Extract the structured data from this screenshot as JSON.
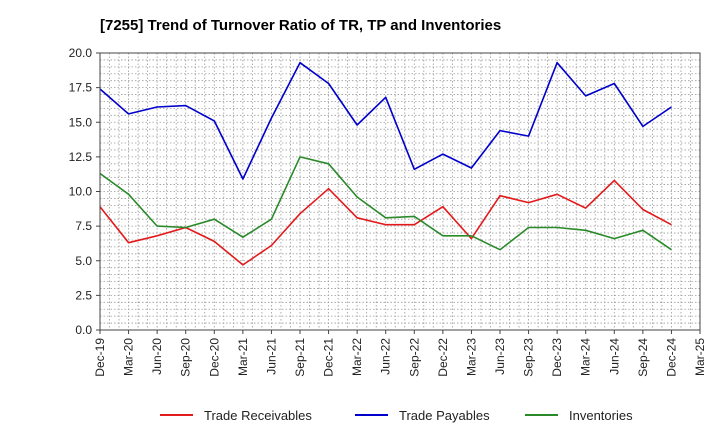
{
  "chart_data": {
    "type": "line",
    "title": "[7255]  Trend of Turnover Ratio of TR, TP and Inventories",
    "xlabel": "",
    "ylabel": "",
    "ylim": [
      0,
      20
    ],
    "yticks": [
      "0.0",
      "2.5",
      "5.0",
      "7.5",
      "10.0",
      "12.5",
      "15.0",
      "17.5",
      "20.0"
    ],
    "x": [
      "Dec-19",
      "Mar-20",
      "Jun-20",
      "Sep-20",
      "Dec-20",
      "Mar-21",
      "Jun-21",
      "Sep-21",
      "Dec-21",
      "Mar-22",
      "Jun-22",
      "Sep-22",
      "Dec-22",
      "Mar-23",
      "Jun-23",
      "Sep-23",
      "Dec-23",
      "Mar-24",
      "Jun-24",
      "Sep-24",
      "Dec-24"
    ],
    "xticks": [
      "Dec-19",
      "Mar-20",
      "Jun-20",
      "Sep-20",
      "Dec-20",
      "Mar-21",
      "Jun-21",
      "Sep-21",
      "Dec-21",
      "Mar-22",
      "Jun-22",
      "Sep-22",
      "Dec-22",
      "Mar-23",
      "Jun-23",
      "Sep-23",
      "Dec-23",
      "Mar-24",
      "Jun-24",
      "Sep-24",
      "Dec-24",
      "Mar-25"
    ],
    "grid": true,
    "legend_position": "bottom",
    "series": [
      {
        "name": "Trade Receivables",
        "color": "#e31a1c",
        "values": [
          8.9,
          6.3,
          6.8,
          7.4,
          6.4,
          4.7,
          6.1,
          8.4,
          10.2,
          8.1,
          7.6,
          7.6,
          8.9,
          6.6,
          9.7,
          9.2,
          9.8,
          8.8,
          10.8,
          8.7,
          7.6
        ]
      },
      {
        "name": "Trade Payables",
        "color": "#0000cc",
        "values": [
          17.4,
          15.6,
          16.1,
          16.2,
          15.1,
          10.9,
          15.3,
          19.3,
          17.8,
          14.8,
          16.8,
          11.6,
          12.7,
          11.7,
          14.4,
          14.0,
          19.3,
          16.9,
          17.8,
          14.7,
          16.1
        ]
      },
      {
        "name": "Inventories",
        "color": "#2a8a2a",
        "values": [
          11.3,
          9.8,
          7.5,
          7.4,
          8.0,
          6.7,
          8.0,
          12.5,
          12.0,
          9.6,
          8.1,
          8.2,
          6.8,
          6.8,
          5.8,
          7.4,
          7.4,
          7.2,
          6.6,
          7.2,
          5.8
        ]
      }
    ]
  }
}
